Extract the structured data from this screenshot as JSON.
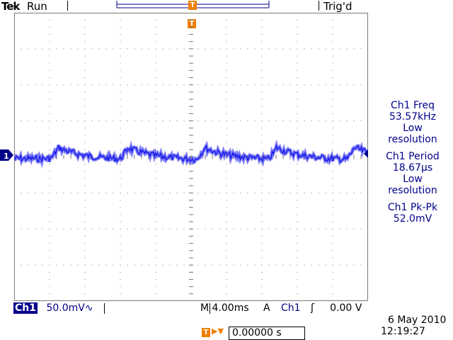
{
  "header": {
    "brand": "Tek",
    "run_state": "Run",
    "trigger_state": "Trig'd",
    "trigger_marker": "T"
  },
  "channel_marker": "1",
  "measurements": {
    "freq": [
      "Ch1 Freq",
      "53.57kHz",
      "Low",
      "resolution"
    ],
    "period": [
      "Ch1 Period",
      "18.67µs",
      "Low",
      "resolution"
    ],
    "pkpk": [
      "Ch1 Pk-Pk",
      "52.0mV"
    ]
  },
  "status_bar": {
    "channel": "Ch1",
    "volts_div": "50.0mV",
    "coupling_symbol": "∿",
    "timebase": "M 4.00ms",
    "trigger_mode": "A",
    "trigger_source": "Ch1",
    "trigger_slope": "ʃ",
    "trigger_level": "0.00 V"
  },
  "horizontal_position": {
    "label": "T▶▼",
    "value": "0.00000 s"
  },
  "datetime": {
    "date": "6 May 2010",
    "time": "12:19:27"
  },
  "colors": {
    "trace": "#1a1aee",
    "trigger_orange": "#f07f00",
    "channel_blue": "#00008b",
    "grid": "#888888"
  }
}
